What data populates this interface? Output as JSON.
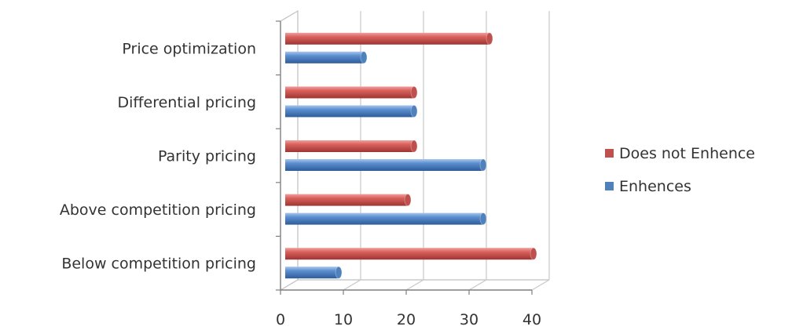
{
  "chart_data": {
    "type": "bar",
    "orientation": "horizontal",
    "style": "3d-cylinder",
    "title": "",
    "xlabel": "",
    "ylabel": "",
    "categories": [
      "Price optimization",
      "Differential pricing",
      "Parity pricing",
      "Above competition pricing",
      "Below competition pricing"
    ],
    "series": [
      {
        "name": "Does not Enhence",
        "color": "#c0504d",
        "values": [
          33,
          21,
          21,
          20,
          40
        ]
      },
      {
        "name": "Enhences",
        "color": "#4f81bd",
        "values": [
          13,
          21,
          32,
          32,
          9
        ]
      }
    ],
    "xlim": [
      0,
      40
    ],
    "xticks": [
      "0",
      "10",
      "20",
      "30",
      "40"
    ],
    "grid": true,
    "legend": "right"
  }
}
